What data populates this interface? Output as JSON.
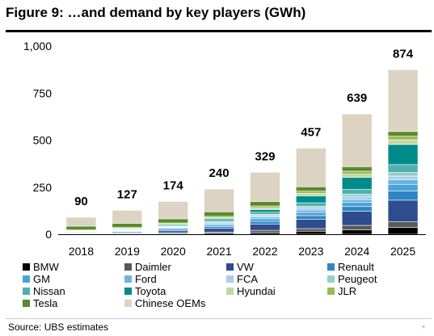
{
  "page": {
    "title": "Figure 9: …and demand by key players (GWh)",
    "source": "Source:  UBS estimates",
    "corner_mark": "+"
  },
  "chart_data": {
    "type": "bar",
    "stacked": true,
    "title": "Figure 9: …and demand by key players (GWh)",
    "xlabel": "",
    "ylabel": "",
    "ylim": [
      0,
      1000
    ],
    "yticks": [
      0,
      250,
      500,
      750,
      1000
    ],
    "ytick_labels": [
      "0",
      "250",
      "500",
      "750",
      "1,000"
    ],
    "grid": false,
    "legend_position": "bottom",
    "categories": [
      "2018",
      "2019",
      "2020",
      "2021",
      "2022",
      "2023",
      "2024",
      "2025"
    ],
    "totals": [
      90,
      127,
      174,
      240,
      329,
      457,
      639,
      874
    ],
    "total_labels": [
      "90",
      "127",
      "174",
      "240",
      "329",
      "457",
      "639",
      "874"
    ],
    "series": [
      {
        "name": "BMW",
        "color": "#000000",
        "values": [
          2,
          3,
          4,
          6,
          9,
          16,
          24,
          36
        ]
      },
      {
        "name": "Daimler",
        "color": "#595959",
        "values": [
          1,
          2,
          4,
          6,
          12,
          14,
          23,
          30
        ]
      },
      {
        "name": "VW",
        "color": "#2e4d8f",
        "values": [
          2,
          4,
          10,
          19,
          32,
          50,
          75,
          115
        ]
      },
      {
        "name": "Renault",
        "color": "#2f86c4",
        "values": [
          4,
          5,
          7,
          10,
          15,
          19,
          25,
          48
        ]
      },
      {
        "name": "GM",
        "color": "#4aa3d8",
        "values": [
          2,
          3,
          6,
          9,
          14,
          17,
          22,
          36
        ]
      },
      {
        "name": "Ford",
        "color": "#6db3e3",
        "values": [
          1,
          2,
          4,
          6,
          9,
          12,
          15,
          24
        ]
      },
      {
        "name": "FCA",
        "color": "#a9cfea",
        "values": [
          1,
          2,
          3,
          5,
          8,
          11,
          15,
          20
        ]
      },
      {
        "name": "Peugeot",
        "color": "#97cfc8",
        "values": [
          1,
          2,
          3,
          5,
          7,
          10,
          14,
          19
        ]
      },
      {
        "name": "Nissan",
        "color": "#4fb0b0",
        "values": [
          2,
          3,
          5,
          8,
          11,
          18,
          25,
          42
        ]
      },
      {
        "name": "Toyota",
        "color": "#008b8b",
        "values": [
          2,
          3,
          5,
          8,
          14,
          37,
          64,
          107
        ]
      },
      {
        "name": "Hyundai",
        "color": "#bfd8a3",
        "values": [
          2,
          3,
          4,
          6,
          9,
          13,
          17,
          25
        ]
      },
      {
        "name": "JLR",
        "color": "#9bbb59",
        "values": [
          3,
          4,
          5,
          7,
          10,
          12,
          16,
          19
        ]
      },
      {
        "name": "Tesla",
        "color": "#5a8a2b",
        "values": [
          20,
          22,
          22,
          24,
          24,
          23,
          24,
          25
        ]
      },
      {
        "name": "Chinese OEMs",
        "color": "#ddd3c2",
        "values": [
          47,
          69,
          92,
          121,
          155,
          205,
          280,
          328
        ]
      }
    ]
  }
}
